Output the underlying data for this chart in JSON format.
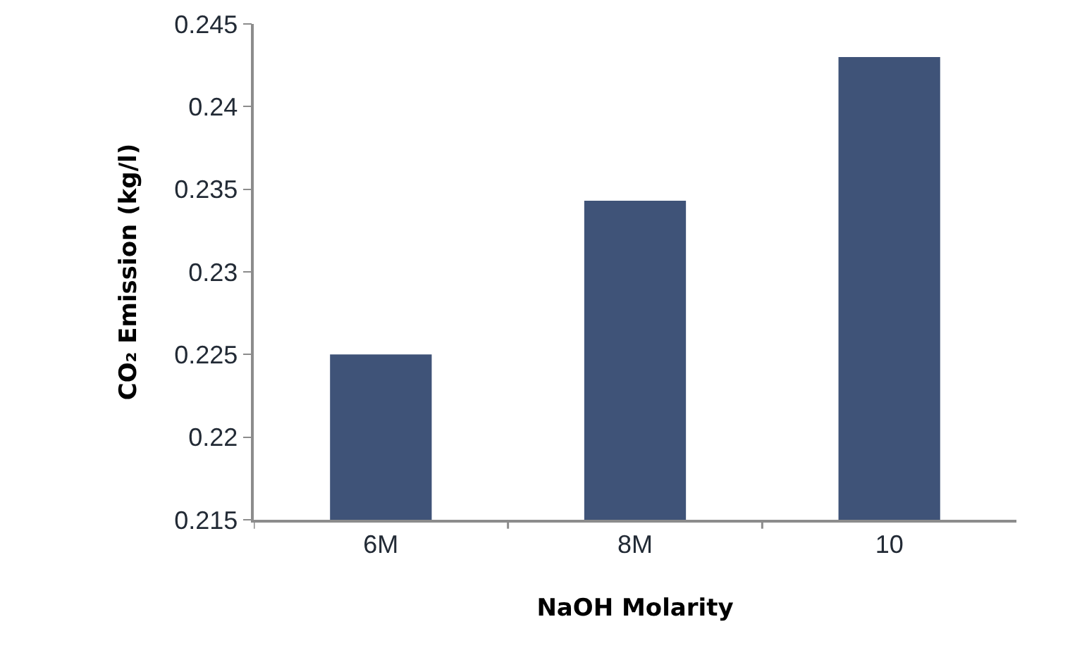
{
  "chart_data": {
    "type": "bar",
    "xlabel": "NaOH Molarity",
    "ylabel": "CO₂ Emission (kg/l)",
    "categories": [
      "6M",
      "8M",
      "10"
    ],
    "series": [
      {
        "color": "#3f5378",
        "values": [
          0.225,
          0.2343,
          0.243
        ]
      }
    ],
    "ylim": [
      0.215,
      0.245
    ],
    "yticks": [
      0.215,
      0.22,
      0.225,
      0.23,
      0.235,
      0.24,
      0.245
    ],
    "grid": false
  }
}
